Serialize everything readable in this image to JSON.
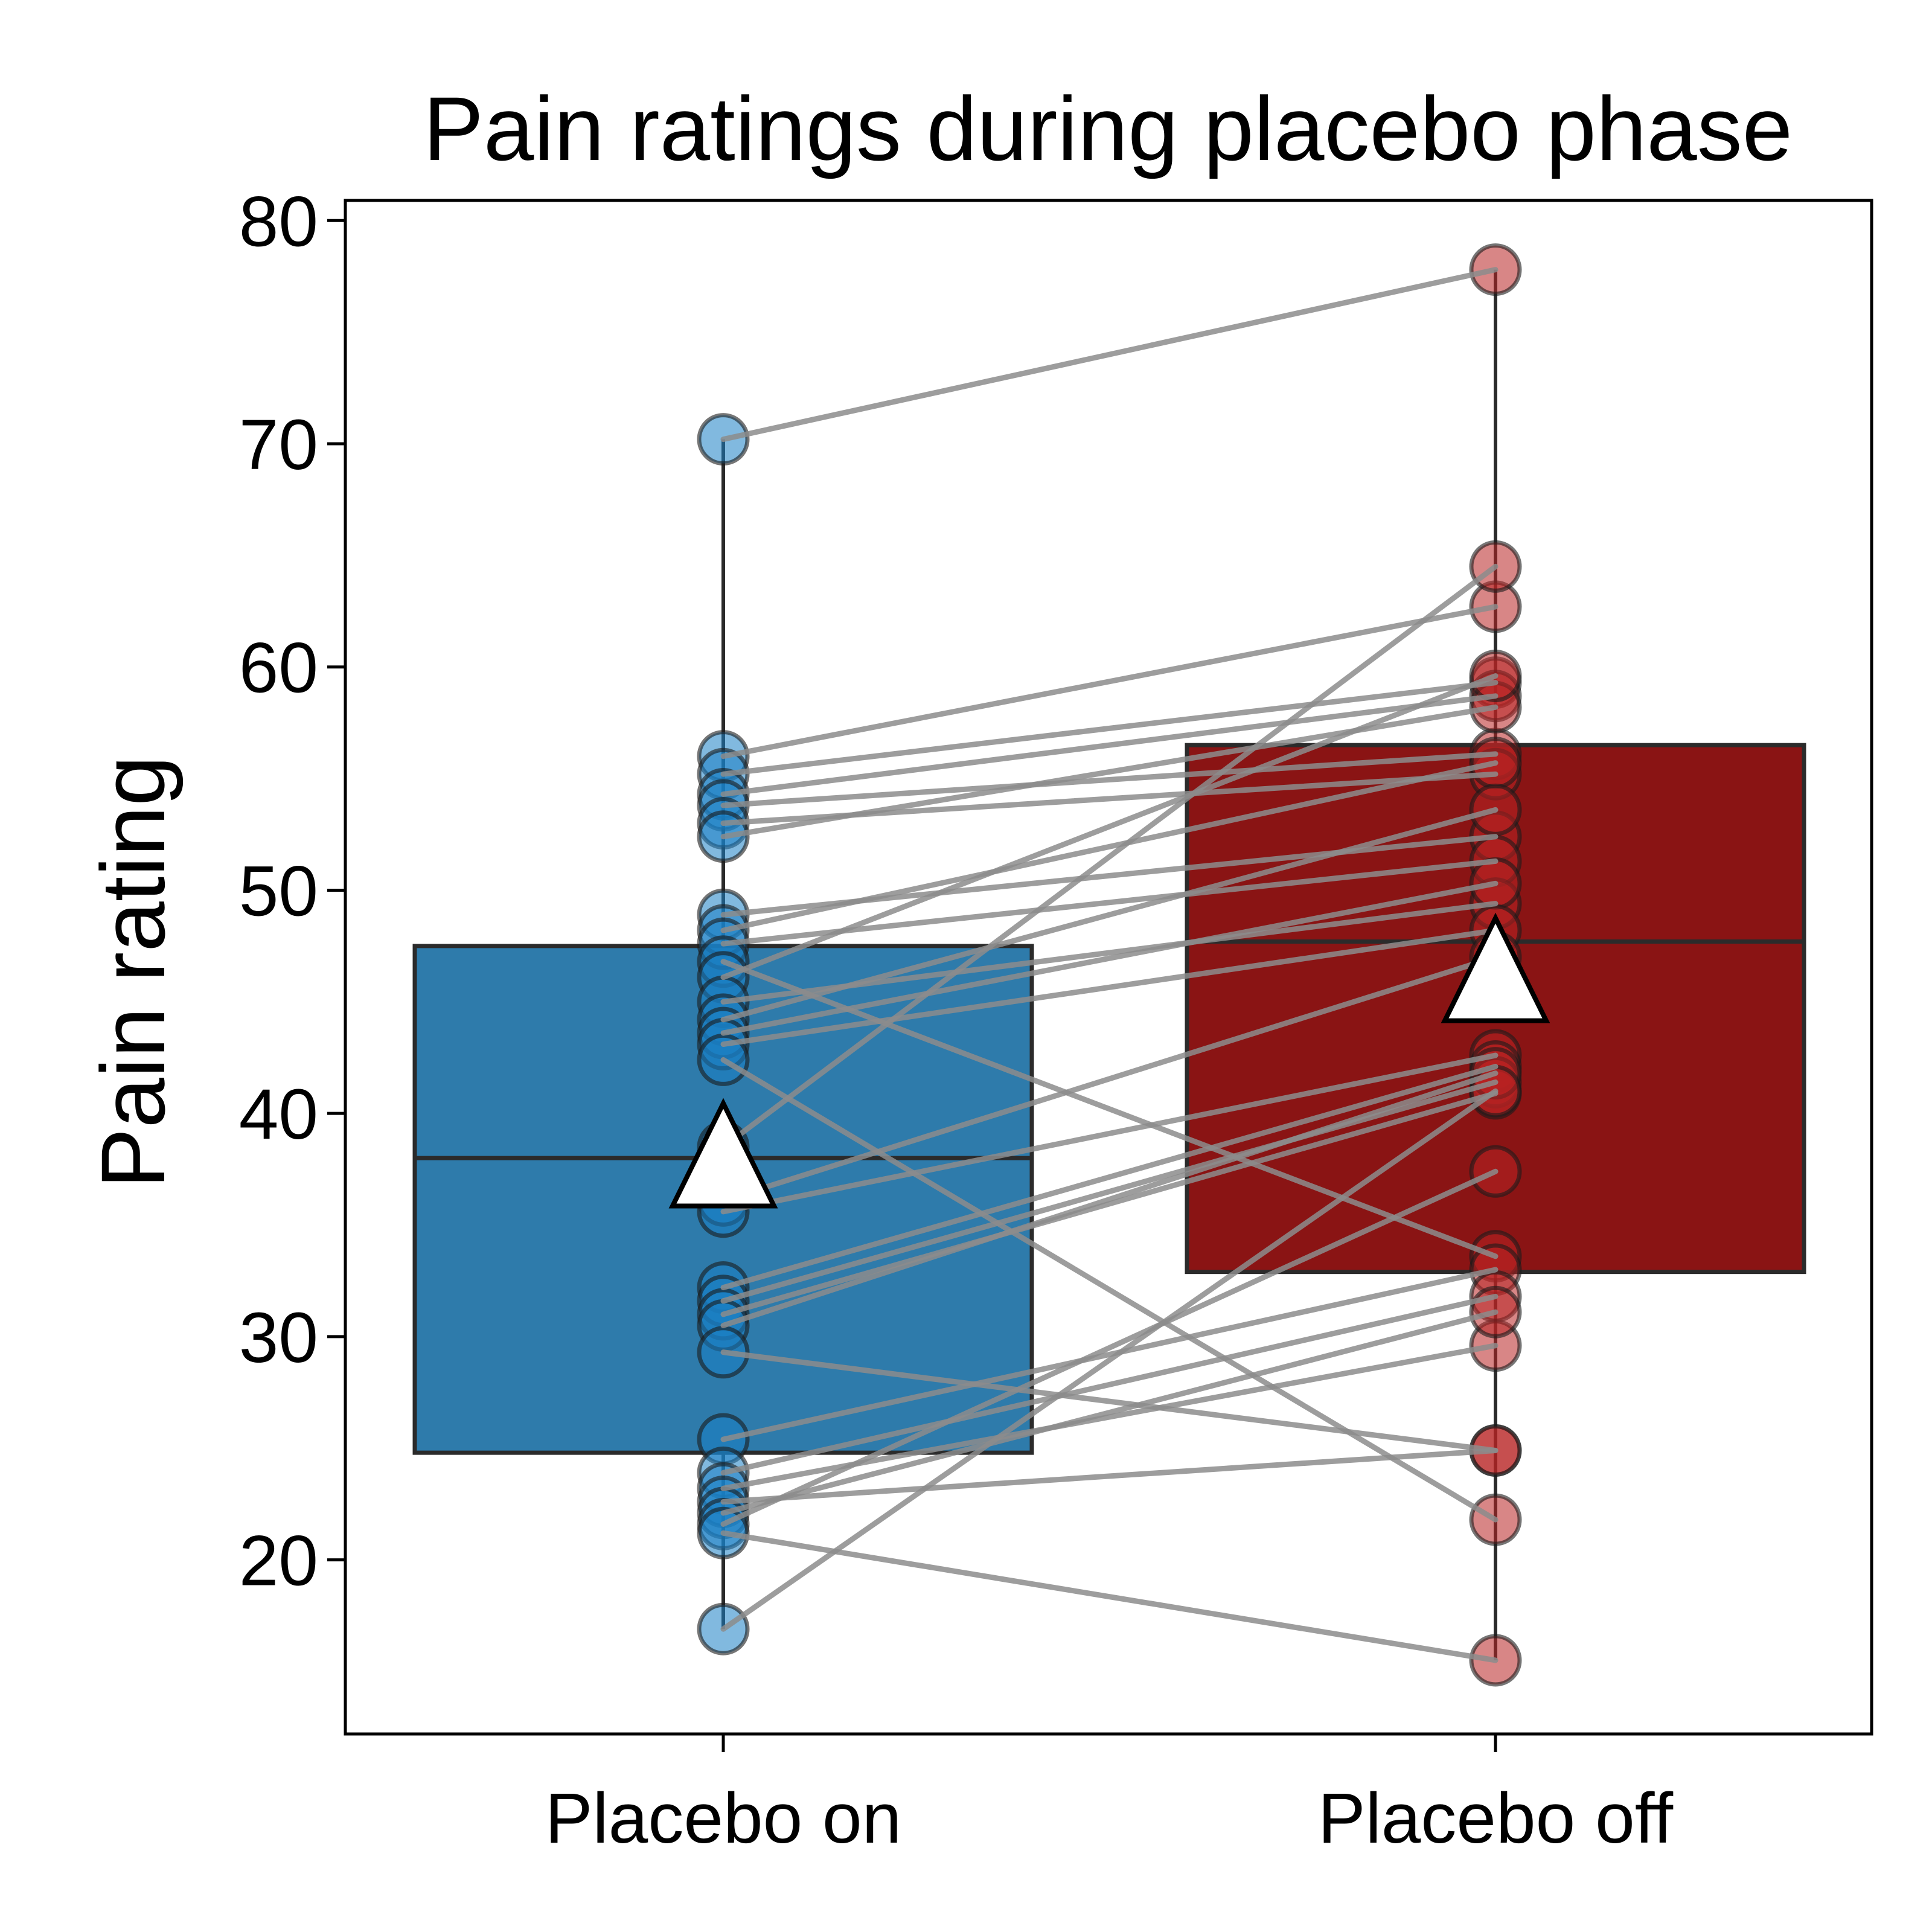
{
  "chart_data": {
    "type": "box",
    "title": "Pain ratings during placebo phase",
    "xlabel": "",
    "ylabel": "Pain rating",
    "ylim": [
      12.2,
      80.9
    ],
    "yticks": [
      20,
      30,
      40,
      50,
      60,
      70,
      80
    ],
    "categories": [
      "Placebo on",
      "Placebo off"
    ],
    "colors": {
      "box_on": "#2e7bab",
      "box_off": "#8a1414",
      "points_on": "#1a80c4",
      "points_off": "#b82222",
      "paired_lines": "#8c8c8c",
      "mean_marker": "#ffffff"
    },
    "boxes": [
      {
        "name": "Placebo on",
        "whisker_low": 16.9,
        "q1": 24.8,
        "median": 38.0,
        "q3": 47.5,
        "whisker_high": 70.2,
        "mean": 37.6
      },
      {
        "name": "Placebo off",
        "whisker_low": 15.5,
        "q1": 32.9,
        "median": 47.7,
        "q3": 56.5,
        "whisker_high": 77.8,
        "mean": 45.9
      }
    ],
    "pairs": [
      [
        70.2,
        77.8
      ],
      [
        56.0,
        62.7
      ],
      [
        55.2,
        59.3
      ],
      [
        54.3,
        58.7
      ],
      [
        53.8,
        56.1
      ],
      [
        53.0,
        55.2
      ],
      [
        52.4,
        58.2
      ],
      [
        48.9,
        52.4
      ],
      [
        48.2,
        55.7
      ],
      [
        47.6,
        51.3
      ],
      [
        46.8,
        33.6
      ],
      [
        46.1,
        59.6
      ],
      [
        45.0,
        49.4
      ],
      [
        44.2,
        53.6
      ],
      [
        43.6,
        50.3
      ],
      [
        43.1,
        48.2
      ],
      [
        42.4,
        21.8
      ],
      [
        38.5,
        64.5
      ],
      [
        36.1,
        47.0
      ],
      [
        35.6,
        42.6
      ],
      [
        32.2,
        42.1
      ],
      [
        31.6,
        41.4
      ],
      [
        31.0,
        40.9
      ],
      [
        30.5,
        41.8
      ],
      [
        29.3,
        24.9
      ],
      [
        25.4,
        33.0
      ],
      [
        23.9,
        31.8
      ],
      [
        23.2,
        29.6
      ],
      [
        22.6,
        24.9
      ],
      [
        22.1,
        31.1
      ],
      [
        21.6,
        37.4
      ],
      [
        21.2,
        15.5
      ],
      [
        16.9,
        41.0
      ]
    ]
  }
}
